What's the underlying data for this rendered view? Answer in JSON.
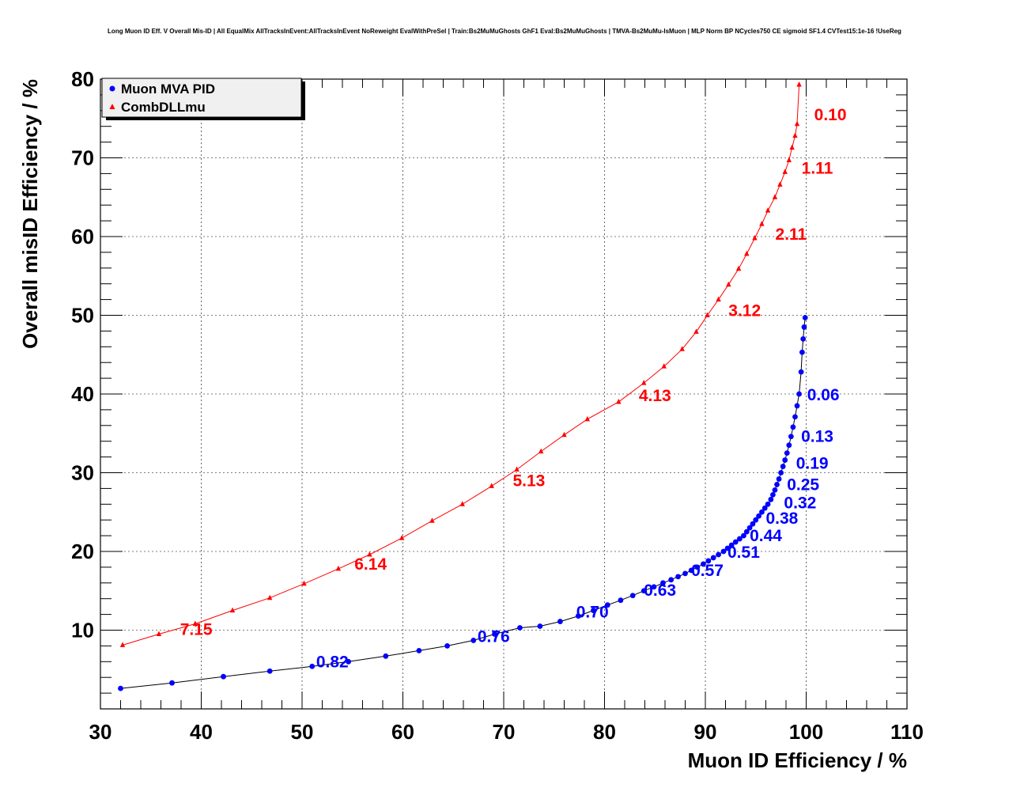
{
  "chart_data": {
    "type": "line",
    "title": "Long Muon ID Eff. V Overall Mis-ID | All EqualMix AllTracksInEvent:AllTracksInEvent NoReweight EvalWithPreSel | Train:Bs2MuMuGhosts GhF1 Eval:Bs2MuMuGhosts | TMVA-Bs2MuMu-IsMuon | MLP Norm BP NCycles750 CE sigmoid SF1.4 CVTest15:1e-16 !UseReg",
    "xlabel": "Muon ID Efficiency / %",
    "ylabel": "Overall misID Efficiency / %",
    "xlim": [
      30,
      110
    ],
    "ylim": [
      0,
      80
    ],
    "x_ticks": [
      "30",
      "40",
      "50",
      "60",
      "70",
      "80",
      "90",
      "100",
      "110"
    ],
    "y_ticks": [
      "10",
      "20",
      "30",
      "40",
      "50",
      "60",
      "70",
      "80"
    ],
    "grid": true,
    "legend_position": "top-left",
    "series": [
      {
        "name": "Muon MVA PID",
        "color": "#0000ff",
        "marker": "circle",
        "x": [
          32.0,
          37.1,
          42.2,
          46.8,
          51.0,
          54.6,
          58.3,
          61.6,
          64.4,
          67.0,
          69.1,
          71.6,
          73.6,
          75.6,
          77.4,
          78.9,
          80.3,
          81.6,
          82.8,
          83.9,
          84.9,
          85.8,
          86.6,
          87.3,
          88.0,
          88.6,
          89.2,
          89.8,
          90.3,
          90.8,
          91.3,
          91.8,
          92.2,
          92.6,
          93.0,
          93.4,
          93.8,
          94.1,
          94.4,
          94.7,
          95.0,
          95.3,
          95.6,
          95.9,
          96.2,
          96.5,
          96.7,
          96.9,
          97.1,
          97.3,
          97.5,
          97.7,
          97.9,
          98.1,
          98.3,
          98.5,
          98.7,
          98.9,
          99.1,
          99.3,
          99.5,
          99.6,
          99.7,
          99.8,
          99.9
        ],
        "y": [
          2.6,
          3.3,
          4.1,
          4.8,
          5.4,
          6.0,
          6.7,
          7.4,
          8.0,
          8.7,
          9.5,
          10.3,
          10.5,
          11.1,
          11.8,
          12.5,
          13.2,
          13.8,
          14.4,
          15.0,
          15.5,
          16.0,
          16.4,
          16.8,
          17.2,
          17.6,
          18.0,
          18.4,
          18.8,
          19.2,
          19.6,
          20.0,
          20.4,
          20.8,
          21.2,
          21.6,
          22.0,
          22.5,
          23.0,
          23.5,
          24.0,
          24.5,
          25.0,
          25.5,
          26.0,
          26.6,
          27.2,
          27.8,
          28.5,
          29.2,
          30.0,
          30.8,
          31.6,
          32.5,
          33.5,
          34.6,
          35.8,
          37.1,
          38.5,
          40.0,
          42.8,
          45.3,
          47.0,
          48.5,
          49.7
        ],
        "annotations": [
          {
            "text": "0.06",
            "x": 101.7,
            "y": 40.0
          },
          {
            "text": "0.13",
            "x": 101.1,
            "y": 34.7
          },
          {
            "text": "0.19",
            "x": 100.6,
            "y": 31.3
          },
          {
            "text": "0.25",
            "x": 99.7,
            "y": 28.6
          },
          {
            "text": "0.32",
            "x": 99.4,
            "y": 26.3
          },
          {
            "text": "0.38",
            "x": 97.6,
            "y": 24.3
          },
          {
            "text": "0.44",
            "x": 96.0,
            "y": 22.1
          },
          {
            "text": "0.51",
            "x": 93.8,
            "y": 20.0
          },
          {
            "text": "0.57",
            "x": 90.2,
            "y": 17.7
          },
          {
            "text": "0.63",
            "x": 85.5,
            "y": 15.2
          },
          {
            "text": "0.70",
            "x": 78.8,
            "y": 12.4
          },
          {
            "text": "0.76",
            "x": 69.0,
            "y": 9.3
          },
          {
            "text": "0.82",
            "x": 53.0,
            "y": 6.1
          }
        ]
      },
      {
        "name": "CombDLLmu",
        "color": "#ff0000",
        "marker": "triangle",
        "x": [
          32.2,
          35.8,
          39.4,
          43.1,
          46.8,
          50.2,
          53.6,
          56.7,
          59.9,
          62.9,
          65.9,
          68.8,
          71.3,
          73.7,
          76.0,
          78.3,
          81.4,
          83.9,
          85.9,
          87.7,
          89.1,
          90.2,
          91.3,
          92.3,
          93.3,
          94.1,
          94.9,
          95.6,
          96.2,
          96.9,
          97.4,
          97.9,
          98.3,
          98.6,
          98.9,
          99.1,
          99.3
        ],
        "y": [
          8.1,
          9.5,
          10.8,
          12.5,
          14.1,
          15.9,
          17.8,
          19.6,
          21.7,
          23.9,
          26.0,
          28.3,
          30.4,
          32.7,
          34.8,
          36.8,
          39.0,
          41.4,
          43.5,
          45.7,
          47.9,
          50.0,
          52.0,
          53.9,
          55.9,
          57.8,
          59.8,
          61.6,
          63.3,
          65.0,
          66.6,
          68.2,
          69.7,
          71.3,
          72.8,
          74.3,
          79.3
        ],
        "annotations": [
          {
            "text": "0.10",
            "x": 102.4,
            "y": 75.6
          },
          {
            "text": "1.11",
            "x": 101.1,
            "y": 68.8
          },
          {
            "text": "2.11",
            "x": 98.5,
            "y": 60.4
          },
          {
            "text": "3.12",
            "x": 93.9,
            "y": 50.7
          },
          {
            "text": "4.13",
            "x": 85.0,
            "y": 39.9
          },
          {
            "text": "5.13",
            "x": 72.5,
            "y": 29.1
          },
          {
            "text": "6.14",
            "x": 56.8,
            "y": 18.5
          },
          {
            "text": "7.15",
            "x": 39.5,
            "y": 10.2
          }
        ]
      }
    ]
  }
}
